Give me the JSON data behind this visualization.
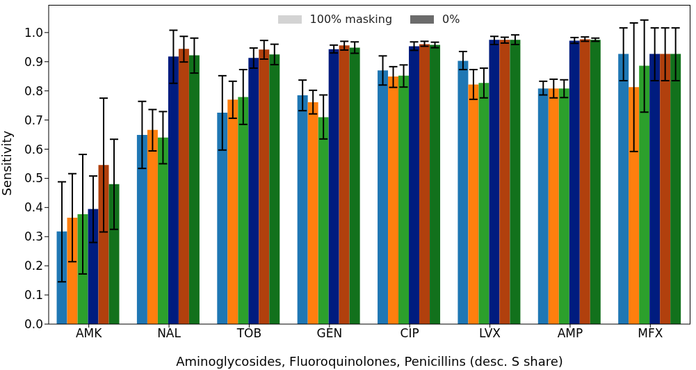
{
  "chart_data": {
    "type": "bar",
    "xlabel": "Aminoglycosides, Fluoroquinolones, Penicillins (desc. S share)",
    "ylabel": "Sensitivity",
    "categories": [
      "AMK",
      "NAL",
      "TOB",
      "GEN",
      "CIP",
      "LVX",
      "AMP",
      "MFX"
    ],
    "series": [
      {
        "color": "#1f77b4",
        "values": [
          0.318,
          0.649,
          0.725,
          0.785,
          0.87,
          0.903,
          0.808,
          0.927
        ],
        "errors": [
          [
            0.145,
            0.488
          ],
          [
            0.534,
            0.764
          ],
          [
            0.597,
            0.852
          ],
          [
            0.732,
            0.837
          ],
          [
            0.82,
            0.92
          ],
          [
            0.873,
            0.935
          ],
          [
            0.786,
            0.833
          ],
          [
            0.835,
            1.016
          ]
        ]
      },
      {
        "color": "#ff7f0e",
        "values": [
          0.365,
          0.666,
          0.77,
          0.761,
          0.849,
          0.822,
          0.808,
          0.813
        ],
        "errors": [
          [
            0.214,
            0.516
          ],
          [
            0.594,
            0.736
          ],
          [
            0.706,
            0.833
          ],
          [
            0.721,
            0.802
          ],
          [
            0.812,
            0.883
          ],
          [
            0.771,
            0.873
          ],
          [
            0.776,
            0.84
          ],
          [
            0.592,
            1.033
          ]
        ]
      },
      {
        "color": "#2ca02c",
        "values": [
          0.377,
          0.64,
          0.779,
          0.71,
          0.852,
          0.827,
          0.808,
          0.886
        ],
        "errors": [
          [
            0.172,
            0.582
          ],
          [
            0.55,
            0.729
          ],
          [
            0.685,
            0.873
          ],
          [
            0.635,
            0.786
          ],
          [
            0.813,
            0.889
          ],
          [
            0.776,
            0.878
          ],
          [
            0.777,
            0.838
          ],
          [
            0.727,
            1.043
          ]
        ]
      },
      {
        "color": "#001c7f",
        "values": [
          0.395,
          0.918,
          0.913,
          0.943,
          0.953,
          0.975,
          0.972,
          0.927
        ],
        "errors": [
          [
            0.28,
            0.508
          ],
          [
            0.826,
            1.008
          ],
          [
            0.878,
            0.947
          ],
          [
            0.93,
            0.957
          ],
          [
            0.939,
            0.968
          ],
          [
            0.959,
            0.987
          ],
          [
            0.963,
            0.983
          ],
          [
            0.835,
            1.016
          ]
        ]
      },
      {
        "color": "#b1400d",
        "values": [
          0.546,
          0.944,
          0.942,
          0.956,
          0.96,
          0.975,
          0.977,
          0.927
        ],
        "errors": [
          [
            0.316,
            0.775
          ],
          [
            0.899,
            0.987
          ],
          [
            0.909,
            0.973
          ],
          [
            0.94,
            0.97
          ],
          [
            0.953,
            0.97
          ],
          [
            0.964,
            0.984
          ],
          [
            0.97,
            0.985
          ],
          [
            0.835,
            1.016
          ]
        ]
      },
      {
        "color": "#12711c",
        "values": [
          0.48,
          0.922,
          0.925,
          0.948,
          0.958,
          0.975,
          0.975,
          0.927
        ],
        "errors": [
          [
            0.325,
            0.634
          ],
          [
            0.861,
            0.981
          ],
          [
            0.89,
            0.96
          ],
          [
            0.929,
            0.968
          ],
          [
            0.948,
            0.967
          ],
          [
            0.959,
            0.992
          ],
          [
            0.97,
            0.981
          ],
          [
            0.835,
            1.016
          ]
        ]
      }
    ],
    "ylim": [
      0,
      1.095
    ],
    "yticks": [
      {
        "value": 0,
        "label": "0.0"
      },
      0.1,
      0.2,
      0.3,
      0.4,
      0.5,
      0.6,
      0.7,
      0.8,
      0.9,
      {
        "value": 1,
        "label": "1.0"
      }
    ],
    "annotations": [
      "100% masking",
      "0%"
    ]
  }
}
